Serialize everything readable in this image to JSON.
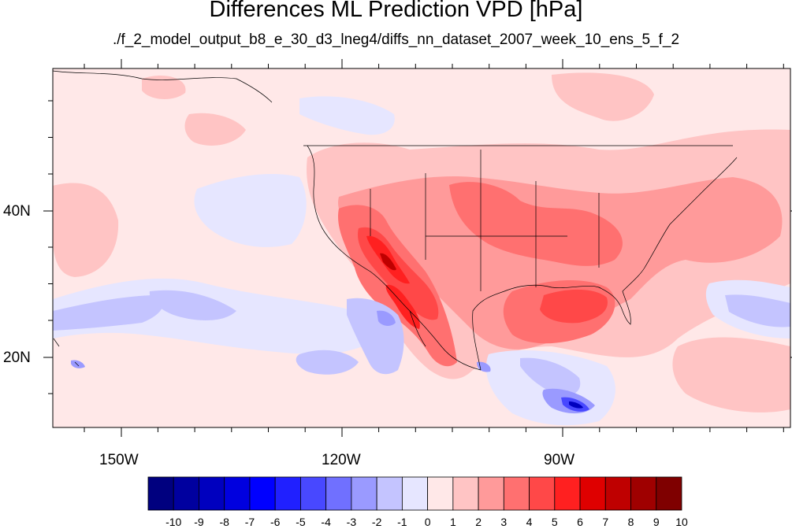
{
  "title": "Differences ML Prediction VPD [hPa]",
  "subtitle": "./f_2_model_output_b8_e_30_d3_lneg4/diffs_nn_dataset_2007_week_10_ens_5_f_2",
  "axes": {
    "lon_labels": [
      "150W",
      "120W",
      "90W"
    ],
    "lat_labels": [
      "40N",
      "20N"
    ]
  },
  "colorbar": {
    "labels": [
      "-10",
      "-9",
      "-8",
      "-7",
      "-6",
      "-5",
      "-4",
      "-3",
      "-2",
      "-1",
      "0",
      "1",
      "2",
      "3",
      "4",
      "5",
      "6",
      "7",
      "8",
      "9",
      "10"
    ],
    "colors": [
      "#00007f",
      "#00009f",
      "#0000bf",
      "#0000df",
      "#0000ff",
      "#2020ff",
      "#4848ff",
      "#7070ff",
      "#9a9aff",
      "#c4c4ff",
      "#e6e6ff",
      "#ffe8e8",
      "#ffc4c4",
      "#ff9a9a",
      "#ff7070",
      "#ff4848",
      "#ff2020",
      "#df0000",
      "#bf0000",
      "#9f0000",
      "#7f0000"
    ]
  },
  "map": {
    "background": "#ffe8e8",
    "palette": {
      "pos1": "#ffc4c4",
      "pos2": "#ff9a9a",
      "pos3": "#ff7070",
      "pos4": "#ff4848",
      "pos5": "#ff2020",
      "pos7": "#bf0000",
      "neg1": "#e6e6ff",
      "neg2": "#c4c4ff",
      "neg3": "#9a9aff",
      "neg5": "#4848ff",
      "neg7": "#0000bf"
    }
  }
}
